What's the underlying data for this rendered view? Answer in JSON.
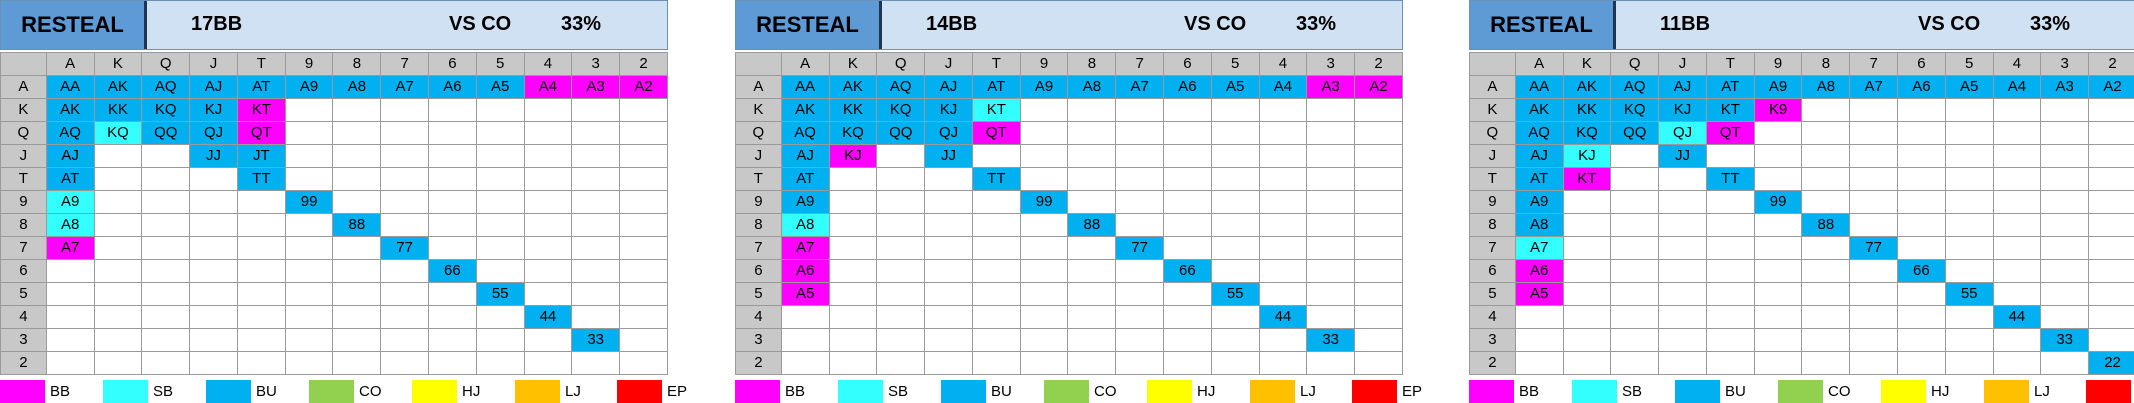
{
  "colors": {
    "BB": "#ff00ff",
    "SB": "#33ffff",
    "BU": "#00b0f0",
    "CO": "#92d050",
    "HJ": "#ffff00",
    "LJ": "#ffc000",
    "EP": "#ff0000"
  },
  "ranks": [
    "A",
    "K",
    "Q",
    "J",
    "T",
    "9",
    "8",
    "7",
    "6",
    "5",
    "4",
    "3",
    "2"
  ],
  "legend": [
    "BB",
    "SB",
    "BU",
    "CO",
    "HJ",
    "LJ",
    "EP"
  ],
  "charts": [
    {
      "title": "RESTEAL",
      "stack": "17BB",
      "versus": "VS CO",
      "percent": "33%",
      "grid": [
        [
          "BU",
          "BU",
          "BU",
          "BU",
          "BU",
          "BU",
          "BU",
          "BU",
          "BU",
          "BU",
          "BB",
          "BB",
          "BB"
        ],
        [
          "BU",
          "BU",
          "BU",
          "BU",
          "BB",
          "",
          "",
          "",
          "",
          "",
          "",
          "",
          ""
        ],
        [
          "BU",
          "SB",
          "BU",
          "BU",
          "BB",
          "",
          "",
          "",
          "",
          "",
          "",
          "",
          ""
        ],
        [
          "BU",
          "",
          "",
          "BU",
          "BU",
          "",
          "",
          "",
          "",
          "",
          "",
          "",
          ""
        ],
        [
          "BU",
          "",
          "",
          "",
          "BU",
          "",
          "",
          "",
          "",
          "",
          "",
          "",
          ""
        ],
        [
          "SB",
          "",
          "",
          "",
          "",
          "BU",
          "",
          "",
          "",
          "",
          "",
          "",
          ""
        ],
        [
          "SB",
          "",
          "",
          "",
          "",
          "",
          "BU",
          "",
          "",
          "",
          "",
          "",
          ""
        ],
        [
          "BB",
          "",
          "",
          "",
          "",
          "",
          "",
          "BU",
          "",
          "",
          "",
          "",
          ""
        ],
        [
          "",
          "",
          "",
          "",
          "",
          "",
          "",
          "",
          "BU",
          "",
          "",
          "",
          ""
        ],
        [
          "",
          "",
          "",
          "",
          "",
          "",
          "",
          "",
          "",
          "BU",
          "",
          "",
          ""
        ],
        [
          "",
          "",
          "",
          "",
          "",
          "",
          "",
          "",
          "",
          "",
          "BU",
          "",
          ""
        ],
        [
          "",
          "",
          "",
          "",
          "",
          "",
          "",
          "",
          "",
          "",
          "",
          "BU",
          ""
        ],
        [
          "",
          "",
          "",
          "",
          "",
          "",
          "",
          "",
          "",
          "",
          "",
          "",
          ""
        ]
      ]
    },
    {
      "title": "RESTEAL",
      "stack": "14BB",
      "versus": "VS CO",
      "percent": "33%",
      "grid": [
        [
          "BU",
          "BU",
          "BU",
          "BU",
          "BU",
          "BU",
          "BU",
          "BU",
          "BU",
          "BU",
          "BU",
          "BB",
          "BB"
        ],
        [
          "BU",
          "BU",
          "BU",
          "BU",
          "SB",
          "",
          "",
          "",
          "",
          "",
          "",
          "",
          ""
        ],
        [
          "BU",
          "BU",
          "BU",
          "BU",
          "BB",
          "",
          "",
          "",
          "",
          "",
          "",
          "",
          ""
        ],
        [
          "BU",
          "BB",
          "",
          "BU",
          "",
          "",
          "",
          "",
          "",
          "",
          "",
          "",
          ""
        ],
        [
          "BU",
          "",
          "",
          "",
          "BU",
          "",
          "",
          "",
          "",
          "",
          "",
          "",
          ""
        ],
        [
          "BU",
          "",
          "",
          "",
          "",
          "BU",
          "",
          "",
          "",
          "",
          "",
          "",
          ""
        ],
        [
          "SB",
          "",
          "",
          "",
          "",
          "",
          "BU",
          "",
          "",
          "",
          "",
          "",
          ""
        ],
        [
          "BB",
          "",
          "",
          "",
          "",
          "",
          "",
          "BU",
          "",
          "",
          "",
          "",
          ""
        ],
        [
          "BB",
          "",
          "",
          "",
          "",
          "",
          "",
          "",
          "BU",
          "",
          "",
          "",
          ""
        ],
        [
          "BB",
          "",
          "",
          "",
          "",
          "",
          "",
          "",
          "",
          "BU",
          "",
          "",
          ""
        ],
        [
          "",
          "",
          "",
          "",
          "",
          "",
          "",
          "",
          "",
          "",
          "BU",
          "",
          ""
        ],
        [
          "",
          "",
          "",
          "",
          "",
          "",
          "",
          "",
          "",
          "",
          "",
          "BU",
          ""
        ],
        [
          "",
          "",
          "",
          "",
          "",
          "",
          "",
          "",
          "",
          "",
          "",
          "",
          ""
        ]
      ]
    },
    {
      "title": "RESTEAL",
      "stack": "11BB",
      "versus": "VS CO",
      "percent": "33%",
      "grid": [
        [
          "BU",
          "BU",
          "BU",
          "BU",
          "BU",
          "BU",
          "BU",
          "BU",
          "BU",
          "BU",
          "BU",
          "BU",
          "BU"
        ],
        [
          "BU",
          "BU",
          "BU",
          "BU",
          "BU",
          "BB",
          "",
          "",
          "",
          "",
          "",
          "",
          ""
        ],
        [
          "BU",
          "BU",
          "BU",
          "SB",
          "BB",
          "",
          "",
          "",
          "",
          "",
          "",
          "",
          ""
        ],
        [
          "BU",
          "SB",
          "",
          "BU",
          "",
          "",
          "",
          "",
          "",
          "",
          "",
          "",
          ""
        ],
        [
          "BU",
          "BB",
          "",
          "",
          "BU",
          "",
          "",
          "",
          "",
          "",
          "",
          "",
          ""
        ],
        [
          "BU",
          "",
          "",
          "",
          "",
          "BU",
          "",
          "",
          "",
          "",
          "",
          "",
          ""
        ],
        [
          "BU",
          "",
          "",
          "",
          "",
          "",
          "BU",
          "",
          "",
          "",
          "",
          "",
          ""
        ],
        [
          "SB",
          "",
          "",
          "",
          "",
          "",
          "",
          "BU",
          "",
          "",
          "",
          "",
          ""
        ],
        [
          "BB",
          "",
          "",
          "",
          "",
          "",
          "",
          "",
          "BU",
          "",
          "",
          "",
          ""
        ],
        [
          "BB",
          "",
          "",
          "",
          "",
          "",
          "",
          "",
          "",
          "BU",
          "",
          "",
          ""
        ],
        [
          "",
          "",
          "",
          "",
          "",
          "",
          "",
          "",
          "",
          "",
          "BU",
          "",
          ""
        ],
        [
          "",
          "",
          "",
          "",
          "",
          "",
          "",
          "",
          "",
          "",
          "",
          "BU",
          ""
        ],
        [
          "",
          "",
          "",
          "",
          "",
          "",
          "",
          "",
          "",
          "",
          "",
          "",
          "BU"
        ]
      ]
    }
  ]
}
